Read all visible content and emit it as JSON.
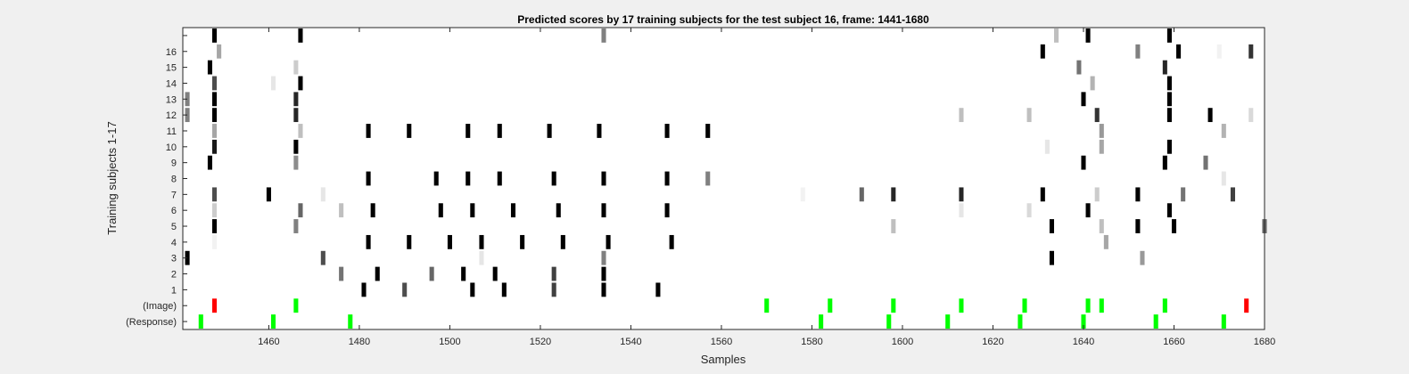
{
  "chart_data": {
    "type": "heatmap",
    "title": "Predicted scores by 17 training subjects for the test subject 16, frame: 1441-1680",
    "xlabel": "Samples",
    "ylabel": "Training subjects 1-17",
    "xlim": [
      1441,
      1680
    ],
    "xticks": [
      1460,
      1480,
      1500,
      1520,
      1540,
      1560,
      1580,
      1600,
      1620,
      1640,
      1660,
      1680
    ],
    "row_labels": [
      "(Response)",
      "(Image)",
      "1",
      "2",
      "3",
      "4",
      "5",
      "6",
      "7",
      "8",
      "9",
      "10",
      "11",
      "12",
      "13",
      "14",
      "15",
      "16",
      ""
    ],
    "colors": {
      "background": "#f0f0f0",
      "plot": "#ffffff",
      "green": "#00ff00",
      "red": "#ff0000",
      "axis": "#262626"
    },
    "response_markers": [
      {
        "x": 1445,
        "color": "green"
      },
      {
        "x": 1461,
        "color": "green"
      },
      {
        "x": 1478,
        "color": "green"
      },
      {
        "x": 1582,
        "color": "green"
      },
      {
        "x": 1597,
        "color": "green"
      },
      {
        "x": 1610,
        "color": "green"
      },
      {
        "x": 1626,
        "color": "green"
      },
      {
        "x": 1640,
        "color": "green"
      },
      {
        "x": 1656,
        "color": "green"
      },
      {
        "x": 1671,
        "color": "green"
      }
    ],
    "image_markers": [
      {
        "x": 1448,
        "color": "red"
      },
      {
        "x": 1466,
        "color": "green"
      },
      {
        "x": 1570,
        "color": "green"
      },
      {
        "x": 1584,
        "color": "green"
      },
      {
        "x": 1598,
        "color": "green"
      },
      {
        "x": 1613,
        "color": "green"
      },
      {
        "x": 1627,
        "color": "green"
      },
      {
        "x": 1641,
        "color": "green"
      },
      {
        "x": 1644,
        "color": "green"
      },
      {
        "x": 1658,
        "color": "green"
      },
      {
        "x": 1676,
        "color": "red"
      }
    ],
    "subject_scores": [
      {
        "row": "1",
        "cells": [
          [
            1481,
            1.0
          ],
          [
            1490,
            0.7
          ],
          [
            1505,
            1.0
          ],
          [
            1512,
            1.0
          ],
          [
            1523,
            0.75
          ],
          [
            1534,
            1.0
          ],
          [
            1546,
            1.0
          ]
        ]
      },
      {
        "row": "2",
        "cells": [
          [
            1476,
            0.55
          ],
          [
            1484,
            1.0
          ],
          [
            1496,
            0.6
          ],
          [
            1503,
            1.0
          ],
          [
            1510,
            1.0
          ],
          [
            1523,
            0.75
          ],
          [
            1534,
            1.0
          ]
        ]
      },
      {
        "row": "3",
        "cells": [
          [
            1442,
            1.0
          ],
          [
            1472,
            0.7
          ],
          [
            1507,
            0.1
          ],
          [
            1534,
            0.5
          ],
          [
            1633,
            1.0
          ],
          [
            1653,
            0.4
          ]
        ]
      },
      {
        "row": "4",
        "cells": [
          [
            1448,
            0.05
          ],
          [
            1482,
            1.0
          ],
          [
            1491,
            1.0
          ],
          [
            1500,
            1.0
          ],
          [
            1507,
            1.0
          ],
          [
            1516,
            1.0
          ],
          [
            1525,
            1.0
          ],
          [
            1535,
            1.0
          ],
          [
            1549,
            1.0
          ],
          [
            1645,
            0.35
          ]
        ]
      },
      {
        "row": "5",
        "cells": [
          [
            1448,
            1.0
          ],
          [
            1466,
            0.5
          ],
          [
            1598,
            0.25
          ],
          [
            1633,
            1.0
          ],
          [
            1644,
            0.25
          ],
          [
            1652,
            1.0
          ],
          [
            1660,
            1.0
          ],
          [
            1680,
            0.6
          ]
        ]
      },
      {
        "row": "6",
        "cells": [
          [
            1448,
            0.2
          ],
          [
            1467,
            0.6
          ],
          [
            1476,
            0.25
          ],
          [
            1483,
            1.0
          ],
          [
            1498,
            1.0
          ],
          [
            1505,
            1.0
          ],
          [
            1514,
            1.0
          ],
          [
            1524,
            1.0
          ],
          [
            1534,
            1.0
          ],
          [
            1548,
            1.0
          ],
          [
            1613,
            0.1
          ],
          [
            1628,
            0.15
          ],
          [
            1641,
            1.0
          ],
          [
            1659,
            1.0
          ]
        ]
      },
      {
        "row": "7",
        "cells": [
          [
            1448,
            0.7
          ],
          [
            1460,
            1.0
          ],
          [
            1472,
            0.1
          ],
          [
            1578,
            0.05
          ],
          [
            1591,
            0.6
          ],
          [
            1598,
            0.85
          ],
          [
            1613,
            0.85
          ],
          [
            1631,
            1.0
          ],
          [
            1643,
            0.2
          ],
          [
            1652,
            1.0
          ],
          [
            1662,
            0.55
          ],
          [
            1673,
            0.75
          ]
        ]
      },
      {
        "row": "8",
        "cells": [
          [
            1482,
            1.0
          ],
          [
            1497,
            1.0
          ],
          [
            1504,
            1.0
          ],
          [
            1511,
            1.0
          ],
          [
            1523,
            1.0
          ],
          [
            1534,
            1.0
          ],
          [
            1548,
            1.0
          ],
          [
            1557,
            0.5
          ],
          [
            1671,
            0.1
          ]
        ]
      },
      {
        "row": "9",
        "cells": [
          [
            1447,
            1.0
          ],
          [
            1466,
            0.45
          ],
          [
            1640,
            1.0
          ],
          [
            1658,
            1.0
          ],
          [
            1667,
            0.55
          ]
        ]
      },
      {
        "row": "10",
        "cells": [
          [
            1448,
            0.9
          ],
          [
            1466,
            1.0
          ],
          [
            1632,
            0.1
          ],
          [
            1644,
            0.35
          ],
          [
            1659,
            1.0
          ]
        ]
      },
      {
        "row": "11",
        "cells": [
          [
            1448,
            0.35
          ],
          [
            1467,
            0.25
          ],
          [
            1482,
            1.0
          ],
          [
            1491,
            1.0
          ],
          [
            1504,
            1.0
          ],
          [
            1511,
            1.0
          ],
          [
            1522,
            1.0
          ],
          [
            1533,
            1.0
          ],
          [
            1548,
            1.0
          ],
          [
            1557,
            1.0
          ],
          [
            1644,
            0.4
          ],
          [
            1671,
            0.3
          ]
        ]
      },
      {
        "row": "12",
        "cells": [
          [
            1442,
            0.5
          ],
          [
            1448,
            1.0
          ],
          [
            1466,
            0.85
          ],
          [
            1613,
            0.25
          ],
          [
            1628,
            0.25
          ],
          [
            1643,
            0.8
          ],
          [
            1659,
            1.0
          ],
          [
            1668,
            1.0
          ],
          [
            1677,
            0.15
          ]
        ]
      },
      {
        "row": "13",
        "cells": [
          [
            1442,
            0.5
          ],
          [
            1448,
            1.0
          ],
          [
            1466,
            0.85
          ],
          [
            1640,
            1.0
          ],
          [
            1659,
            1.0
          ]
        ]
      },
      {
        "row": "14",
        "cells": [
          [
            1448,
            0.7
          ],
          [
            1461,
            0.1
          ],
          [
            1467,
            1.0
          ],
          [
            1642,
            0.3
          ],
          [
            1659,
            1.0
          ]
        ]
      },
      {
        "row": "15",
        "cells": [
          [
            1447,
            1.0
          ],
          [
            1466,
            0.2
          ],
          [
            1639,
            0.55
          ],
          [
            1658,
            0.85
          ]
        ]
      },
      {
        "row": "16",
        "cells": [
          [
            1449,
            0.35
          ],
          [
            1631,
            1.0
          ],
          [
            1652,
            0.5
          ],
          [
            1661,
            1.0
          ],
          [
            1670,
            0.05
          ],
          [
            1677,
            0.8
          ]
        ]
      },
      {
        "row": "",
        "cells": [
          [
            1448,
            1.0
          ],
          [
            1467,
            1.0
          ],
          [
            1534,
            0.5
          ],
          [
            1634,
            0.25
          ],
          [
            1641,
            1.0
          ],
          [
            1659,
            1.0
          ]
        ]
      }
    ]
  }
}
